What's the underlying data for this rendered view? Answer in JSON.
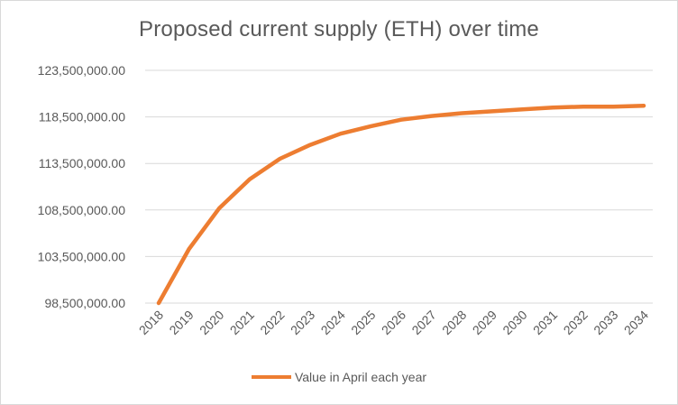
{
  "chart_data": {
    "type": "line",
    "title": "Proposed current supply (ETH) over time",
    "xlabel": "",
    "ylabel": "",
    "categories": [
      "2018",
      "2019",
      "2020",
      "2021",
      "2022",
      "2023",
      "2024",
      "2025",
      "2026",
      "2027",
      "2028",
      "2029",
      "2030",
      "2031",
      "2032",
      "2033",
      "2034"
    ],
    "series": [
      {
        "name": "Value in April each year",
        "color": "#ed7d31",
        "values": [
          98500000,
          104300000,
          108700000,
          111800000,
          114000000,
          115500000,
          116700000,
          117500000,
          118200000,
          118600000,
          118900000,
          119100000,
          119300000,
          119500000,
          119600000,
          119600000,
          119700000
        ]
      }
    ],
    "ylim": [
      98500000,
      123500000
    ],
    "yticks": [
      98500000,
      103500000,
      108500000,
      113500000,
      118500000,
      123500000
    ],
    "ytick_labels": [
      "98,500,000.00",
      "103,500,000.00",
      "108,500,000.00",
      "113,500,000.00",
      "118,500,000.00",
      "123,500,000.00"
    ],
    "grid": "horizontal",
    "legend_position": "bottom",
    "gridline_color": "#d9d9d9"
  }
}
